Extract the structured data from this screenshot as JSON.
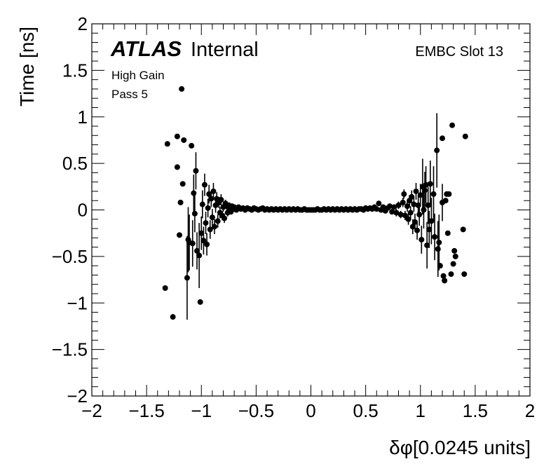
{
  "chart_data": {
    "type": "scatter",
    "title": "",
    "xlabel": "δφ[0.0245 units]",
    "ylabel": "Time [ns]",
    "xlim": [
      -2,
      2
    ],
    "ylim": [
      -2,
      2
    ],
    "grid": false,
    "xticks": [
      {
        "value": -2,
        "label": "−2"
      },
      {
        "value": -1.5,
        "label": "−1.5"
      },
      {
        "value": -1,
        "label": "−1"
      },
      {
        "value": -0.5,
        "label": "−0.5"
      },
      {
        "value": 0,
        "label": "0"
      },
      {
        "value": 0.5,
        "label": "0.5"
      },
      {
        "value": 1,
        "label": "1"
      },
      {
        "value": 1.5,
        "label": "1.5"
      },
      {
        "value": 2,
        "label": "2"
      }
    ],
    "yticks": [
      {
        "value": -2,
        "label": "−2"
      },
      {
        "value": -1.5,
        "label": "−1.5"
      },
      {
        "value": -1,
        "label": "−1"
      },
      {
        "value": -0.5,
        "label": "−0.5"
      },
      {
        "value": 0,
        "label": "0"
      },
      {
        "value": 0.5,
        "label": "0.5"
      },
      {
        "value": 1,
        "label": "1"
      },
      {
        "value": 1.5,
        "label": "1.5"
      },
      {
        "value": 2,
        "label": "2"
      }
    ],
    "annotations": {
      "atlas": "ATLAS",
      "internal": "Internal",
      "slot": "EMBC Slot 13",
      "gain": "High Gain",
      "pass": "Pass 5"
    },
    "series": [
      {
        "marker_color": "#000000",
        "points": [
          {
            "x": -1.33,
            "y": -0.84,
            "err": 0.0
          },
          {
            "x": -1.31,
            "y": 0.71,
            "err": 0.0
          },
          {
            "x": -1.26,
            "y": -1.15,
            "err": 0.0
          },
          {
            "x": -1.22,
            "y": 0.79,
            "err": 0.0
          },
          {
            "x": -1.22,
            "y": 0.46,
            "err": 0.0
          },
          {
            "x": -1.2,
            "y": -0.27,
            "err": 0.0
          },
          {
            "x": -1.19,
            "y": 0.08,
            "err": 0.0
          },
          {
            "x": -1.18,
            "y": 1.3,
            "err": 0.0
          },
          {
            "x": -1.17,
            "y": 0.28,
            "err": 0.0
          },
          {
            "x": -1.16,
            "y": 0.75,
            "err": 0.0
          },
          {
            "x": -1.13,
            "y": -0.73,
            "err": 0.45
          },
          {
            "x": -1.12,
            "y": -0.32,
            "err": 0.35
          },
          {
            "x": -1.11,
            "y": -0.35,
            "err": 0.3
          },
          {
            "x": -1.09,
            "y": 0.69,
            "err": 0.0
          },
          {
            "x": -1.08,
            "y": -0.36,
            "err": 0.25
          },
          {
            "x": -1.07,
            "y": 0.18,
            "err": 0.2
          },
          {
            "x": -1.06,
            "y": -0.04,
            "err": 0.2
          },
          {
            "x": -1.05,
            "y": 0.42,
            "err": 0.2
          },
          {
            "x": -1.04,
            "y": -0.44,
            "err": 0.2
          },
          {
            "x": -1.02,
            "y": -0.49,
            "err": 0.35
          },
          {
            "x": -1.01,
            "y": -0.99,
            "err": 0.0
          },
          {
            "x": -1.0,
            "y": -0.25,
            "err": 0.18
          },
          {
            "x": -0.99,
            "y": 0.06,
            "err": 0.15
          },
          {
            "x": -0.98,
            "y": -0.33,
            "err": 0.15
          },
          {
            "x": -0.97,
            "y": 0.27,
            "err": 0.12
          },
          {
            "x": -0.96,
            "y": -0.14,
            "err": 0.12
          },
          {
            "x": -0.95,
            "y": -0.37,
            "err": 0.12
          },
          {
            "x": -0.94,
            "y": 0.02,
            "err": 0.1
          },
          {
            "x": -0.93,
            "y": 0.17,
            "err": 0.1
          },
          {
            "x": -0.92,
            "y": -0.21,
            "err": 0.1
          },
          {
            "x": -0.91,
            "y": 0.12,
            "err": 0.09
          },
          {
            "x": -0.9,
            "y": -0.08,
            "err": 0.09
          },
          {
            "x": -0.89,
            "y": 0.2,
            "err": 0.09
          },
          {
            "x": -0.88,
            "y": -0.18,
            "err": 0.08
          },
          {
            "x": -0.87,
            "y": 0.05,
            "err": 0.08
          },
          {
            "x": -0.86,
            "y": 0.12,
            "err": 0.07
          },
          {
            "x": -0.85,
            "y": -0.12,
            "err": 0.07
          },
          {
            "x": -0.84,
            "y": 0.08,
            "err": 0.06
          },
          {
            "x": -0.83,
            "y": -0.03,
            "err": 0.06
          },
          {
            "x": -0.82,
            "y": 0.11,
            "err": 0.06
          },
          {
            "x": -0.81,
            "y": -0.06,
            "err": 0.05
          },
          {
            "x": -0.8,
            "y": 0.03,
            "err": 0.05
          },
          {
            "x": -0.79,
            "y": -0.09,
            "err": 0.05
          },
          {
            "x": -0.78,
            "y": 0.07,
            "err": 0.04
          },
          {
            "x": -0.77,
            "y": 0.04,
            "err": 0.04
          },
          {
            "x": -0.76,
            "y": -0.03,
            "err": 0.04
          },
          {
            "x": -0.75,
            "y": 0.05,
            "err": 0.03
          },
          {
            "x": -0.74,
            "y": 0.02,
            "err": 0.03
          },
          {
            "x": -0.73,
            "y": -0.02,
            "err": 0.03
          },
          {
            "x": -0.72,
            "y": 0.04,
            "err": 0.03
          },
          {
            "x": -0.71,
            "y": 0.01,
            "err": 0.02
          },
          {
            "x": -0.7,
            "y": 0.03,
            "err": 0.02
          },
          {
            "x": -0.68,
            "y": 0.0,
            "err": 0.02
          },
          {
            "x": -0.66,
            "y": 0.03,
            "err": 0.02
          },
          {
            "x": -0.64,
            "y": 0.01,
            "err": 0.02
          },
          {
            "x": -0.62,
            "y": 0.02,
            "err": 0.01
          },
          {
            "x": -0.6,
            "y": 0.0,
            "err": 0.01
          },
          {
            "x": -0.58,
            "y": 0.02,
            "err": 0.01
          },
          {
            "x": -0.56,
            "y": 0.01,
            "err": 0.01
          },
          {
            "x": -0.54,
            "y": 0.0,
            "err": 0.01
          },
          {
            "x": -0.52,
            "y": 0.02,
            "err": 0.01
          },
          {
            "x": -0.5,
            "y": 0.01,
            "err": 0.01
          },
          {
            "x": -0.48,
            "y": 0.0,
            "err": 0.01
          },
          {
            "x": -0.46,
            "y": 0.01,
            "err": 0.01
          },
          {
            "x": -0.44,
            "y": 0.02,
            "err": 0.01
          },
          {
            "x": -0.42,
            "y": 0.0,
            "err": 0.01
          },
          {
            "x": -0.4,
            "y": 0.01,
            "err": 0.01
          },
          {
            "x": -0.38,
            "y": 0.0,
            "err": 0.01
          },
          {
            "x": -0.36,
            "y": 0.01,
            "err": 0.01
          },
          {
            "x": -0.34,
            "y": 0.0,
            "err": 0.01
          },
          {
            "x": -0.32,
            "y": 0.01,
            "err": 0.01
          },
          {
            "x": -0.3,
            "y": 0.0,
            "err": 0.01
          },
          {
            "x": -0.28,
            "y": 0.01,
            "err": 0.01
          },
          {
            "x": -0.26,
            "y": 0.0,
            "err": 0.01
          },
          {
            "x": -0.24,
            "y": 0.01,
            "err": 0.01
          },
          {
            "x": -0.22,
            "y": 0.0,
            "err": 0.01
          },
          {
            "x": -0.2,
            "y": 0.01,
            "err": 0.01
          },
          {
            "x": -0.18,
            "y": 0.0,
            "err": 0.01
          },
          {
            "x": -0.16,
            "y": 0.01,
            "err": 0.01
          },
          {
            "x": -0.14,
            "y": 0.0,
            "err": 0.01
          },
          {
            "x": -0.12,
            "y": 0.01,
            "err": 0.01
          },
          {
            "x": -0.1,
            "y": 0.0,
            "err": 0.01
          },
          {
            "x": -0.08,
            "y": 0.0,
            "err": 0.01
          },
          {
            "x": -0.06,
            "y": 0.01,
            "err": 0.01
          },
          {
            "x": -0.04,
            "y": 0.0,
            "err": 0.01
          },
          {
            "x": -0.02,
            "y": 0.0,
            "err": 0.01
          },
          {
            "x": 0.0,
            "y": 0.0,
            "err": 0.01
          },
          {
            "x": 0.02,
            "y": 0.0,
            "err": 0.01
          },
          {
            "x": 0.04,
            "y": 0.0,
            "err": 0.01
          },
          {
            "x": 0.06,
            "y": 0.01,
            "err": 0.01
          },
          {
            "x": 0.08,
            "y": 0.0,
            "err": 0.01
          },
          {
            "x": 0.1,
            "y": 0.0,
            "err": 0.01
          },
          {
            "x": 0.12,
            "y": 0.01,
            "err": 0.01
          },
          {
            "x": 0.14,
            "y": 0.0,
            "err": 0.01
          },
          {
            "x": 0.16,
            "y": 0.01,
            "err": 0.01
          },
          {
            "x": 0.18,
            "y": 0.0,
            "err": 0.01
          },
          {
            "x": 0.2,
            "y": 0.01,
            "err": 0.01
          },
          {
            "x": 0.22,
            "y": 0.0,
            "err": 0.01
          },
          {
            "x": 0.24,
            "y": 0.01,
            "err": 0.01
          },
          {
            "x": 0.26,
            "y": 0.0,
            "err": 0.01
          },
          {
            "x": 0.28,
            "y": 0.01,
            "err": 0.01
          },
          {
            "x": 0.3,
            "y": 0.0,
            "err": 0.01
          },
          {
            "x": 0.32,
            "y": 0.01,
            "err": 0.01
          },
          {
            "x": 0.34,
            "y": 0.0,
            "err": 0.01
          },
          {
            "x": 0.36,
            "y": 0.01,
            "err": 0.01
          },
          {
            "x": 0.38,
            "y": 0.0,
            "err": 0.01
          },
          {
            "x": 0.4,
            "y": 0.01,
            "err": 0.01
          },
          {
            "x": 0.42,
            "y": 0.0,
            "err": 0.01
          },
          {
            "x": 0.44,
            "y": 0.01,
            "err": 0.01
          },
          {
            "x": 0.46,
            "y": 0.01,
            "err": 0.01
          },
          {
            "x": 0.48,
            "y": 0.0,
            "err": 0.01
          },
          {
            "x": 0.5,
            "y": 0.02,
            "err": 0.01
          },
          {
            "x": 0.52,
            "y": 0.01,
            "err": 0.01
          },
          {
            "x": 0.54,
            "y": 0.02,
            "err": 0.01
          },
          {
            "x": 0.56,
            "y": 0.01,
            "err": 0.01
          },
          {
            "x": 0.58,
            "y": 0.03,
            "err": 0.02
          },
          {
            "x": 0.6,
            "y": 0.01,
            "err": 0.02
          },
          {
            "x": 0.62,
            "y": 0.07,
            "err": 0.02
          },
          {
            "x": 0.64,
            "y": 0.0,
            "err": 0.02
          },
          {
            "x": 0.66,
            "y": 0.03,
            "err": 0.02
          },
          {
            "x": 0.68,
            "y": -0.01,
            "err": 0.02
          },
          {
            "x": 0.7,
            "y": 0.02,
            "err": 0.03
          },
          {
            "x": 0.72,
            "y": 0.04,
            "err": 0.03
          },
          {
            "x": 0.74,
            "y": -0.02,
            "err": 0.03
          },
          {
            "x": 0.76,
            "y": 0.03,
            "err": 0.03
          },
          {
            "x": 0.78,
            "y": -0.03,
            "err": 0.04
          },
          {
            "x": 0.8,
            "y": 0.05,
            "err": 0.04
          },
          {
            "x": 0.82,
            "y": -0.05,
            "err": 0.04
          },
          {
            "x": 0.84,
            "y": 0.08,
            "err": 0.05
          },
          {
            "x": 0.85,
            "y": 0.17,
            "err": 0.05
          },
          {
            "x": 0.86,
            "y": -0.06,
            "err": 0.05
          },
          {
            "x": 0.88,
            "y": 0.04,
            "err": 0.06
          },
          {
            "x": 0.89,
            "y": -0.1,
            "err": 0.06
          },
          {
            "x": 0.9,
            "y": 0.1,
            "err": 0.06
          },
          {
            "x": 0.91,
            "y": -0.03,
            "err": 0.07
          },
          {
            "x": 0.92,
            "y": 0.14,
            "err": 0.07
          },
          {
            "x": 0.93,
            "y": -0.18,
            "err": 0.08
          },
          {
            "x": 0.94,
            "y": 0.06,
            "err": 0.08
          },
          {
            "x": 0.95,
            "y": -0.13,
            "err": 0.09
          },
          {
            "x": 0.96,
            "y": 0.2,
            "err": 0.09
          },
          {
            "x": 0.97,
            "y": -0.22,
            "err": 0.1
          },
          {
            "x": 0.98,
            "y": 0.05,
            "err": 0.1
          },
          {
            "x": 0.99,
            "y": -0.05,
            "err": 0.12
          },
          {
            "x": 1.0,
            "y": 0.16,
            "err": 0.12
          },
          {
            "x": 1.01,
            "y": -0.32,
            "err": 0.15
          },
          {
            "x": 1.02,
            "y": 0.25,
            "err": 0.3
          },
          {
            "x": 1.03,
            "y": 0.0,
            "err": 0.2
          },
          {
            "x": 1.04,
            "y": 0.21,
            "err": 0.2
          },
          {
            "x": 1.05,
            "y": 0.27,
            "err": 0.2
          },
          {
            "x": 1.06,
            "y": -0.38,
            "err": 0.25
          },
          {
            "x": 1.07,
            "y": 0.05,
            "err": 0.2
          },
          {
            "x": 1.08,
            "y": -0.21,
            "err": 0.2
          },
          {
            "x": 1.09,
            "y": 0.28,
            "err": 0.25
          },
          {
            "x": 1.1,
            "y": -0.12,
            "err": 0.25
          },
          {
            "x": 1.12,
            "y": 0.17,
            "err": 0.3
          },
          {
            "x": 1.13,
            "y": -0.29,
            "err": 0.25
          },
          {
            "x": 1.15,
            "y": 0.64,
            "err": 0.4
          },
          {
            "x": 1.16,
            "y": -0.42,
            "err": 0.3
          },
          {
            "x": 1.17,
            "y": -0.35,
            "err": 0.3
          },
          {
            "x": 1.18,
            "y": -0.6,
            "err": 0.0
          },
          {
            "x": 1.2,
            "y": 0.77,
            "err": 0.0
          },
          {
            "x": 1.2,
            "y": 0.08,
            "err": 0.2
          },
          {
            "x": 1.21,
            "y": -0.71,
            "err": 0.0
          },
          {
            "x": 1.22,
            "y": -0.76,
            "err": 0.0
          },
          {
            "x": 1.23,
            "y": 0.1,
            "err": 0.0
          },
          {
            "x": 1.24,
            "y": 0.17,
            "err": 0.0
          },
          {
            "x": 1.25,
            "y": -0.25,
            "err": 0.0
          },
          {
            "x": 1.26,
            "y": 0.17,
            "err": 0.0
          },
          {
            "x": 1.28,
            "y": -0.69,
            "err": 0.0
          },
          {
            "x": 1.29,
            "y": 0.91,
            "err": 0.0
          },
          {
            "x": 1.3,
            "y": -0.58,
            "err": 0.0
          },
          {
            "x": 1.31,
            "y": -0.44,
            "err": 0.0
          },
          {
            "x": 1.32,
            "y": -0.5,
            "err": 0.0
          },
          {
            "x": 1.39,
            "y": -0.21,
            "err": 0.0
          },
          {
            "x": 1.4,
            "y": -0.69,
            "err": 0.0
          },
          {
            "x": 1.41,
            "y": 0.79,
            "err": 0.0
          }
        ]
      }
    ]
  }
}
